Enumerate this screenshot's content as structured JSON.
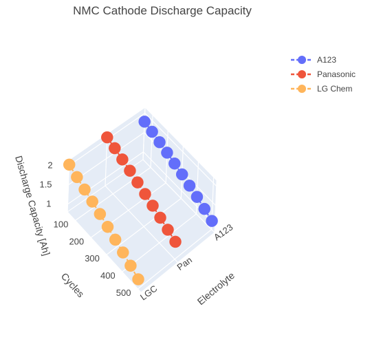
{
  "chart_data": {
    "type": "scatter",
    "title": "NMC Cathode Discharge Capacity",
    "axes": {
      "x": {
        "title": "Electrolyte",
        "ticks": [
          "A123",
          "Pan",
          "LGC"
        ]
      },
      "y": {
        "title": "Cycles",
        "ticks": [
          "100",
          "200",
          "300",
          "400",
          "500"
        ],
        "range": [
          50,
          520
        ]
      },
      "z": {
        "title": "Discharge Capacity [Ah]",
        "ticks": [
          "1",
          "1.5",
          "2"
        ],
        "range": [
          0.8,
          2.15
        ]
      }
    },
    "grid": true,
    "legend_position": "top-right",
    "series": [
      {
        "name": "A123",
        "color": "#636efa",
        "category": 0,
        "cycles": [
          50,
          100,
          150,
          200,
          250,
          300,
          350,
          400,
          450,
          500
        ],
        "capacity": [
          1.78,
          1.72,
          1.65,
          1.58,
          1.5,
          1.42,
          1.33,
          1.24,
          1.13,
          1.02
        ]
      },
      {
        "name": "Panasonic",
        "color": "#ef553b",
        "category": 1,
        "cycles": [
          50,
          100,
          150,
          200,
          250,
          300,
          350,
          400,
          450,
          500
        ],
        "capacity": [
          2.05,
          1.98,
          1.9,
          1.82,
          1.73,
          1.64,
          1.55,
          1.45,
          1.35,
          1.25
        ]
      },
      {
        "name": "LG Chem",
        "color": "#ffb55b",
        "category": 2,
        "cycles": [
          50,
          100,
          150,
          200,
          250,
          300,
          350,
          400,
          450,
          500
        ],
        "capacity": [
          2.02,
          1.92,
          1.82,
          1.73,
          1.63,
          1.52,
          1.41,
          1.3,
          1.18,
          1.05
        ]
      }
    ]
  }
}
